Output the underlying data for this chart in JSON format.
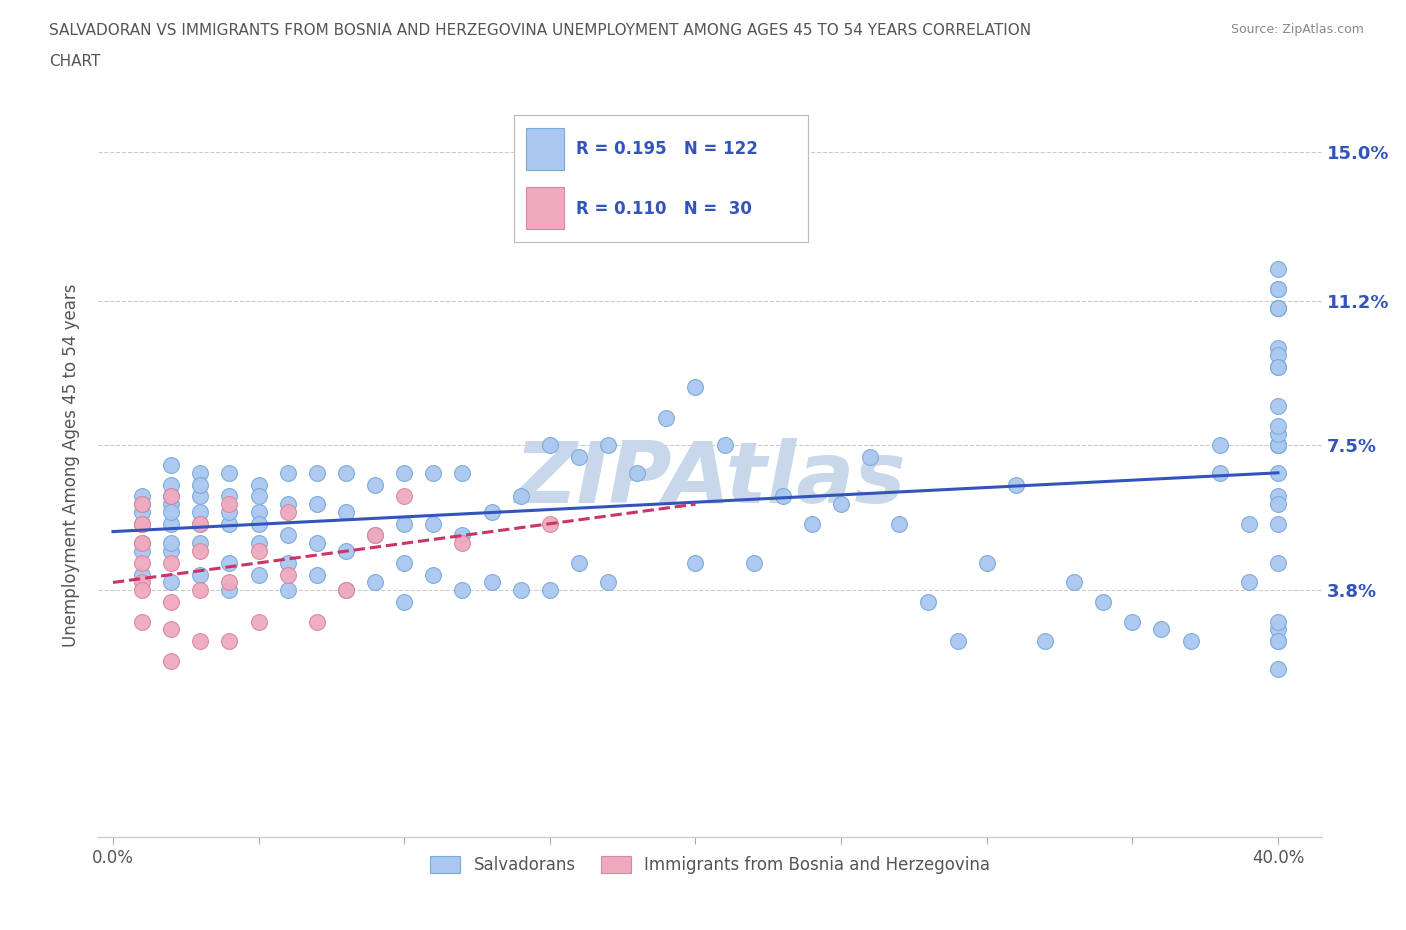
{
  "title_line1": "SALVADORAN VS IMMIGRANTS FROM BOSNIA AND HERZEGOVINA UNEMPLOYMENT AMONG AGES 45 TO 54 YEARS CORRELATION",
  "title_line2": "CHART",
  "source": "Source: ZipAtlas.com",
  "ylabel": "Unemployment Among Ages 45 to 54 years",
  "xlim": [
    -0.005,
    0.415
  ],
  "ylim": [
    -0.025,
    0.165
  ],
  "xtick_positions": [
    0.0,
    0.05,
    0.1,
    0.15,
    0.2,
    0.25,
    0.3,
    0.35,
    0.4
  ],
  "xticklabels": [
    "0.0%",
    "",
    "",
    "",
    "",
    "",
    "",
    "",
    "40.0%"
  ],
  "ytick_positions": [
    0.038,
    0.075,
    0.112,
    0.15
  ],
  "ytick_labels": [
    "3.8%",
    "7.5%",
    "11.2%",
    "15.0%"
  ],
  "blue_color": "#aac8f0",
  "blue_edge": "#7aaad8",
  "pink_color": "#f0aac0",
  "pink_edge": "#d88898",
  "blue_line_color": "#3355bb",
  "pink_line_color": "#cc3366",
  "R1": 0.195,
  "N1": 122,
  "R2": 0.11,
  "N2": 30,
  "watermark": "ZIPAtlas",
  "watermark_color": "#c8d8ea",
  "background_color": "#ffffff",
  "grid_color": "#cccccc",
  "title_color": "#555555",
  "blue_x": [
    0.01,
    0.01,
    0.01,
    0.01,
    0.01,
    0.01,
    0.01,
    0.02,
    0.02,
    0.02,
    0.02,
    0.02,
    0.02,
    0.02,
    0.02,
    0.02,
    0.03,
    0.03,
    0.03,
    0.03,
    0.03,
    0.03,
    0.03,
    0.04,
    0.04,
    0.04,
    0.04,
    0.04,
    0.04,
    0.05,
    0.05,
    0.05,
    0.05,
    0.05,
    0.05,
    0.06,
    0.06,
    0.06,
    0.06,
    0.06,
    0.07,
    0.07,
    0.07,
    0.07,
    0.08,
    0.08,
    0.08,
    0.08,
    0.09,
    0.09,
    0.09,
    0.1,
    0.1,
    0.1,
    0.1,
    0.11,
    0.11,
    0.11,
    0.12,
    0.12,
    0.12,
    0.13,
    0.13,
    0.14,
    0.14,
    0.15,
    0.15,
    0.16,
    0.16,
    0.17,
    0.17,
    0.18,
    0.19,
    0.2,
    0.2,
    0.21,
    0.22,
    0.23,
    0.24,
    0.25,
    0.26,
    0.27,
    0.28,
    0.29,
    0.3,
    0.31,
    0.32,
    0.33,
    0.34,
    0.35,
    0.36,
    0.37,
    0.38,
    0.38,
    0.39,
    0.39,
    0.4,
    0.4,
    0.4,
    0.4,
    0.4,
    0.4,
    0.4,
    0.4,
    0.4,
    0.4,
    0.4,
    0.4,
    0.4,
    0.4,
    0.4,
    0.4,
    0.4,
    0.4,
    0.4,
    0.4,
    0.4,
    0.4,
    0.4,
    0.4,
    0.4,
    0.4
  ],
  "blue_y": [
    0.05,
    0.055,
    0.058,
    0.062,
    0.048,
    0.042,
    0.06,
    0.04,
    0.048,
    0.055,
    0.06,
    0.065,
    0.05,
    0.058,
    0.062,
    0.07,
    0.042,
    0.05,
    0.055,
    0.062,
    0.068,
    0.058,
    0.065,
    0.038,
    0.045,
    0.055,
    0.062,
    0.068,
    0.058,
    0.042,
    0.05,
    0.058,
    0.065,
    0.055,
    0.062,
    0.038,
    0.045,
    0.052,
    0.06,
    0.068,
    0.042,
    0.05,
    0.06,
    0.068,
    0.038,
    0.048,
    0.058,
    0.068,
    0.04,
    0.052,
    0.065,
    0.035,
    0.045,
    0.055,
    0.068,
    0.042,
    0.055,
    0.068,
    0.038,
    0.052,
    0.068,
    0.04,
    0.058,
    0.038,
    0.062,
    0.038,
    0.075,
    0.045,
    0.072,
    0.04,
    0.075,
    0.068,
    0.082,
    0.045,
    0.09,
    0.075,
    0.045,
    0.062,
    0.055,
    0.06,
    0.072,
    0.055,
    0.035,
    0.025,
    0.045,
    0.065,
    0.025,
    0.04,
    0.035,
    0.03,
    0.028,
    0.025,
    0.068,
    0.075,
    0.055,
    0.04,
    0.115,
    0.1,
    0.11,
    0.075,
    0.12,
    0.025,
    0.075,
    0.095,
    0.11,
    0.068,
    0.085,
    0.11,
    0.075,
    0.062,
    0.098,
    0.028,
    0.095,
    0.078,
    0.055,
    0.08,
    0.06,
    0.03,
    0.025,
    0.018,
    0.045,
    0.115
  ],
  "pink_x": [
    0.01,
    0.01,
    0.01,
    0.01,
    0.01,
    0.01,
    0.01,
    0.01,
    0.02,
    0.02,
    0.02,
    0.02,
    0.02,
    0.03,
    0.03,
    0.03,
    0.03,
    0.04,
    0.04,
    0.04,
    0.05,
    0.05,
    0.06,
    0.06,
    0.07,
    0.08,
    0.09,
    0.1,
    0.12,
    0.15
  ],
  "pink_y": [
    0.045,
    0.05,
    0.055,
    0.04,
    0.038,
    0.03,
    0.06,
    0.055,
    0.035,
    0.045,
    0.028,
    0.02,
    0.062,
    0.025,
    0.038,
    0.055,
    0.048,
    0.025,
    0.04,
    0.06,
    0.03,
    0.048,
    0.042,
    0.058,
    0.03,
    0.038,
    0.052,
    0.062,
    0.05,
    0.055
  ],
  "blue_trend_x": [
    0.0,
    0.4
  ],
  "blue_trend_y": [
    0.053,
    0.068
  ],
  "pink_trend_x": [
    0.0,
    0.2
  ],
  "pink_trend_y": [
    0.04,
    0.06
  ]
}
